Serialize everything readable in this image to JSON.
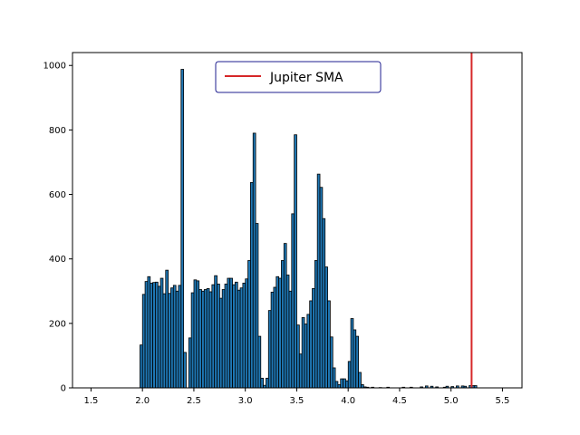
{
  "chart_data": {
    "type": "bar",
    "subtype": "histogram",
    "title": "",
    "xlabel": "",
    "ylabel": "",
    "xlim": [
      1.32,
      5.69
    ],
    "ylim": [
      0,
      1040
    ],
    "grid": false,
    "legend_position": "top-center",
    "xticks": [
      "1.5",
      "2.0",
      "2.5",
      "3.0",
      "3.5",
      "4.0",
      "4.5",
      "5.0",
      "5.5"
    ],
    "yticks": [
      "0",
      "200",
      "400",
      "600",
      "800",
      "1000"
    ],
    "bin_width": 0.025,
    "series": [
      {
        "color": "#1f77b4",
        "edge_color": "#000000",
        "bars": [
          {
            "x": 1.988,
            "v": 133
          },
          {
            "x": 2.013,
            "v": 290
          },
          {
            "x": 2.038,
            "v": 330
          },
          {
            "x": 2.063,
            "v": 345
          },
          {
            "x": 2.088,
            "v": 325
          },
          {
            "x": 2.113,
            "v": 327
          },
          {
            "x": 2.138,
            "v": 328
          },
          {
            "x": 2.163,
            "v": 315
          },
          {
            "x": 2.188,
            "v": 340
          },
          {
            "x": 2.213,
            "v": 292
          },
          {
            "x": 2.238,
            "v": 365
          },
          {
            "x": 2.263,
            "v": 293
          },
          {
            "x": 2.288,
            "v": 310
          },
          {
            "x": 2.313,
            "v": 318
          },
          {
            "x": 2.338,
            "v": 300
          },
          {
            "x": 2.363,
            "v": 318
          },
          {
            "x": 2.388,
            "v": 988
          },
          {
            "x": 2.413,
            "v": 110
          },
          {
            "x": 2.463,
            "v": 155
          },
          {
            "x": 2.488,
            "v": 295
          },
          {
            "x": 2.513,
            "v": 335
          },
          {
            "x": 2.538,
            "v": 332
          },
          {
            "x": 2.563,
            "v": 305
          },
          {
            "x": 2.588,
            "v": 300
          },
          {
            "x": 2.613,
            "v": 305
          },
          {
            "x": 2.638,
            "v": 308
          },
          {
            "x": 2.663,
            "v": 298
          },
          {
            "x": 2.688,
            "v": 320
          },
          {
            "x": 2.713,
            "v": 348
          },
          {
            "x": 2.738,
            "v": 322
          },
          {
            "x": 2.763,
            "v": 278
          },
          {
            "x": 2.788,
            "v": 305
          },
          {
            "x": 2.813,
            "v": 322
          },
          {
            "x": 2.838,
            "v": 340
          },
          {
            "x": 2.863,
            "v": 340
          },
          {
            "x": 2.888,
            "v": 320
          },
          {
            "x": 2.913,
            "v": 328
          },
          {
            "x": 2.938,
            "v": 303
          },
          {
            "x": 2.963,
            "v": 310
          },
          {
            "x": 2.988,
            "v": 325
          },
          {
            "x": 3.013,
            "v": 338
          },
          {
            "x": 3.038,
            "v": 395
          },
          {
            "x": 3.063,
            "v": 637
          },
          {
            "x": 3.088,
            "v": 790
          },
          {
            "x": 3.113,
            "v": 510
          },
          {
            "x": 3.138,
            "v": 160
          },
          {
            "x": 3.163,
            "v": 30
          },
          {
            "x": 3.188,
            "v": 8
          },
          {
            "x": 3.213,
            "v": 30
          },
          {
            "x": 3.238,
            "v": 240
          },
          {
            "x": 3.263,
            "v": 297
          },
          {
            "x": 3.288,
            "v": 312
          },
          {
            "x": 3.313,
            "v": 345
          },
          {
            "x": 3.338,
            "v": 340
          },
          {
            "x": 3.363,
            "v": 395
          },
          {
            "x": 3.388,
            "v": 448
          },
          {
            "x": 3.413,
            "v": 350
          },
          {
            "x": 3.438,
            "v": 300
          },
          {
            "x": 3.463,
            "v": 540
          },
          {
            "x": 3.488,
            "v": 785
          },
          {
            "x": 3.513,
            "v": 195
          },
          {
            "x": 3.538,
            "v": 105
          },
          {
            "x": 3.563,
            "v": 218
          },
          {
            "x": 3.588,
            "v": 198
          },
          {
            "x": 3.613,
            "v": 228
          },
          {
            "x": 3.638,
            "v": 270
          },
          {
            "x": 3.663,
            "v": 308
          },
          {
            "x": 3.688,
            "v": 395
          },
          {
            "x": 3.713,
            "v": 663
          },
          {
            "x": 3.738,
            "v": 622
          },
          {
            "x": 3.763,
            "v": 525
          },
          {
            "x": 3.788,
            "v": 375
          },
          {
            "x": 3.813,
            "v": 270
          },
          {
            "x": 3.838,
            "v": 158
          },
          {
            "x": 3.863,
            "v": 62
          },
          {
            "x": 3.888,
            "v": 20
          },
          {
            "x": 3.913,
            "v": 10
          },
          {
            "x": 3.938,
            "v": 28
          },
          {
            "x": 3.963,
            "v": 28
          },
          {
            "x": 3.988,
            "v": 22
          },
          {
            "x": 4.013,
            "v": 82
          },
          {
            "x": 4.038,
            "v": 215
          },
          {
            "x": 4.063,
            "v": 180
          },
          {
            "x": 4.088,
            "v": 160
          },
          {
            "x": 4.113,
            "v": 48
          },
          {
            "x": 4.138,
            "v": 10
          },
          {
            "x": 4.163,
            "v": 3
          },
          {
            "x": 4.188,
            "v": 2
          },
          {
            "x": 4.238,
            "v": 2
          },
          {
            "x": 4.313,
            "v": 1
          },
          {
            "x": 4.388,
            "v": 2
          },
          {
            "x": 4.538,
            "v": 2
          },
          {
            "x": 4.613,
            "v": 2
          },
          {
            "x": 4.713,
            "v": 3
          },
          {
            "x": 4.763,
            "v": 6
          },
          {
            "x": 4.813,
            "v": 5
          },
          {
            "x": 4.863,
            "v": 3
          },
          {
            "x": 4.938,
            "v": 2
          },
          {
            "x": 4.963,
            "v": 5
          },
          {
            "x": 5.013,
            "v": 4
          },
          {
            "x": 5.063,
            "v": 6
          },
          {
            "x": 5.113,
            "v": 6
          },
          {
            "x": 5.138,
            "v": 5
          },
          {
            "x": 5.188,
            "v": 7
          },
          {
            "x": 5.213,
            "v": 7
          },
          {
            "x": 5.238,
            "v": 7
          }
        ]
      }
    ],
    "vlines": [
      {
        "x": 5.2,
        "label": "Jupiter SMA",
        "color": "#d62728"
      }
    ],
    "legend": {
      "label": "Jupiter SMA",
      "edge_color": "#1f1f8f",
      "line_color": "#d62728"
    }
  }
}
